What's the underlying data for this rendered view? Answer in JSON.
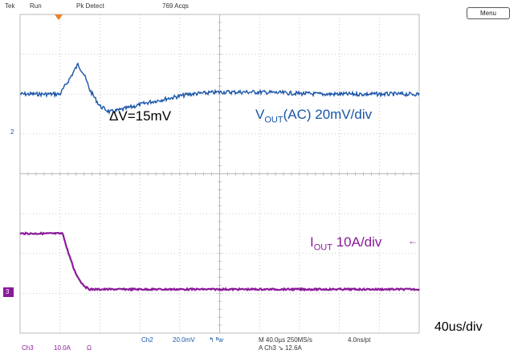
{
  "status_bar": {
    "brand": "Tek",
    "run_state": "Run",
    "acq_mode": "Pk Detect",
    "acq_count": "769 Acqs"
  },
  "menu_button": {
    "label": "Menu"
  },
  "channel_markers": {
    "ch2": "2",
    "ch3": "3"
  },
  "annotations": {
    "delta_v": "ΔV=15mV",
    "vout_main": "V",
    "vout_sub": "OUT",
    "vout_rest": "(AC) 20mV/div",
    "iout_main": "I",
    "iout_sub": "OUT",
    "iout_rest": " 10A/div",
    "timebase": "40us/div"
  },
  "readouts": {
    "ch3_name": "Ch3",
    "ch3_scale": "10.0A",
    "ch3_coupling": "Ω",
    "ch2_name": "Ch2",
    "ch2_scale": "20.0mV",
    "ch2_bw": "↰ ᴮw",
    "horizontal": "M 40.0µs 250MS/s",
    "sample_interval": "4.0ns/pt",
    "trigger": "A  Ch3  ↘  12.6A"
  },
  "colors": {
    "ch2_trace": "#1a55a8",
    "ch3_trace": "#8b1a9a",
    "grid": "#b9b9b9",
    "trigger_marker": "#f08020"
  },
  "chart_data": {
    "type": "line",
    "title": "",
    "xlabel": "",
    "ylabel": "",
    "x_divisions": 10,
    "y_divisions": 8,
    "time_per_div_us": 40,
    "series": [
      {
        "name": "VOUT(AC) 20mV/div",
        "unit": "mV",
        "scale_per_div": 20,
        "x_us": [
          0,
          40,
          50,
          58,
          64,
          70,
          80,
          90,
          100,
          115,
          130,
          150,
          170,
          200,
          240,
          300,
          400
        ],
        "y": [
          0,
          0,
          8,
          15,
          10,
          2,
          -6,
          -9,
          -8,
          -6,
          -4,
          -2,
          0,
          1,
          1,
          0,
          0
        ]
      },
      {
        "name": "IOUT 10A/div",
        "unit": "A",
        "scale_per_div": 10,
        "x_us": [
          0,
          43,
          46,
          50,
          54,
          58,
          62,
          66,
          70,
          80,
          400
        ],
        "y": [
          20,
          20,
          17,
          14,
          11,
          9,
          7.5,
          6.5,
          6,
          6,
          6
        ]
      }
    ]
  }
}
